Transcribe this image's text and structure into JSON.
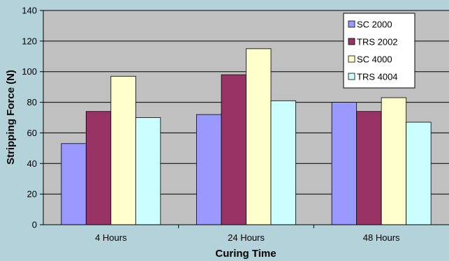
{
  "chart_data": {
    "type": "bar",
    "categories": [
      "4 Hours",
      "24 Hours",
      "48 Hours"
    ],
    "series": [
      {
        "name": "SC 2000",
        "values": [
          53,
          72,
          80
        ],
        "color": "#9999ff"
      },
      {
        "name": "TRS 2002",
        "values": [
          74,
          98,
          74
        ],
        "color": "#993366"
      },
      {
        "name": "SC 4000",
        "values": [
          97,
          115,
          83
        ],
        "color": "#ffffcc"
      },
      {
        "name": "TRS 4004",
        "values": [
          70,
          81,
          67
        ],
        "color": "#ccffff"
      }
    ],
    "xlabel": "Curing Time",
    "ylabel": "Stripping Force (N)",
    "ylim": [
      0,
      140
    ],
    "yticks": [
      0,
      20,
      40,
      60,
      80,
      100,
      120,
      140
    ],
    "grid": true,
    "legend_position": "top-right",
    "plot_background": "#c0c0c0",
    "figure_background": "#b4d2da"
  }
}
